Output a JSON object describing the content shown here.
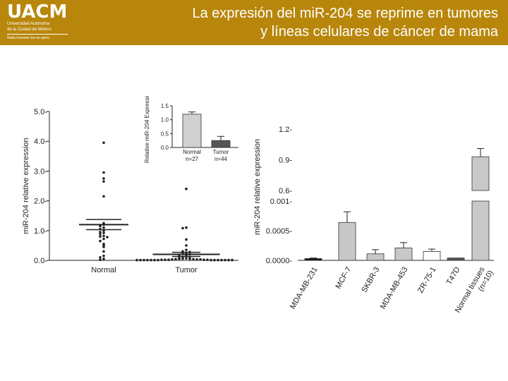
{
  "header": {
    "logo": {
      "name": "UACM",
      "sub1": "Universidad Autónoma",
      "sub2": "de la Ciudad de México",
      "motto": "Nada humano me es ajeno"
    },
    "title_line1": "La expresión del miR-204 se reprime en tumores",
    "title_line2": "y líneas celulares de cáncer de mama",
    "color": "#b8860b"
  },
  "chart_data": [
    {
      "type": "scatter",
      "ylabel": "miR-204 relative expression",
      "ylim": [
        0,
        5
      ],
      "yticks": [
        "0.0",
        "1.0",
        "2.0",
        "3.0",
        "4.0",
        "5.0"
      ],
      "categories": [
        "Normal",
        "Tumor"
      ],
      "series": [
        {
          "values": [
            3.95,
            2.95,
            2.75,
            2.65,
            2.15,
            1.25,
            1.2,
            1.15,
            1.1,
            1.05,
            1.0,
            0.95,
            0.92,
            0.88,
            0.82,
            0.8,
            0.78,
            0.72,
            0.65,
            0.55,
            0.5,
            0.45,
            0.3,
            0.15,
            0.1,
            0.05,
            0.02
          ],
          "mean": 1.2,
          "sem": 0.17
        },
        {
          "values": [
            2.4,
            1.1,
            1.08,
            0.7,
            0.5,
            0.35,
            0.3,
            0.28,
            0.25,
            0.22,
            0.2,
            0.18,
            0.15,
            0.12,
            0.1,
            0.08,
            0.07,
            0.06,
            0.05,
            0.05,
            0.04,
            0.04,
            0.03,
            0.03,
            0.03,
            0.02,
            0.02,
            0.02,
            0.02,
            0.02,
            0.01,
            0.01,
            0.01,
            0.01,
            0.01,
            0.01,
            0.01,
            0.01,
            0.01,
            0.01,
            0.01,
            0.01,
            0.01,
            0.01
          ],
          "mean": 0.2,
          "sem": 0.07
        }
      ]
    },
    {
      "type": "bar",
      "ylabel": "Relative miR-204 Expression",
      "ylim": [
        0,
        1.5
      ],
      "yticks": [
        "0.0",
        "0.5",
        "1.0",
        "1.5"
      ],
      "categories": [
        "Normal n=27",
        "Tumor n=44"
      ],
      "cat_line1": [
        "Normal",
        "Tumor"
      ],
      "cat_line2": [
        "n=27",
        "n=44"
      ],
      "values": [
        1.2,
        0.25
      ],
      "errors": [
        0.08,
        0.15
      ],
      "colors": [
        "#d0d0d0",
        "#555555"
      ]
    },
    {
      "type": "bar",
      "ylabel": "miR-204 relative expression",
      "y_axis_break": true,
      "lower_ticks": [
        "0.0000",
        "0.0005",
        "0.001"
      ],
      "upper_ticks": [
        "0.6",
        "0.9",
        "1.2"
      ],
      "lower_range": [
        0,
        0.001
      ],
      "upper_range": [
        0.6,
        1.2
      ],
      "categories": [
        "MDA-MB-231",
        "MCF-7",
        "SKBR-3",
        "MDA-MB-453",
        "ZR-75-1",
        "T47D",
        "Normal tissues (n=10)"
      ],
      "cat_line1": [
        "MDA-MB-231",
        "MCF-7",
        "SKBR-3",
        "MDA-MB-453",
        "ZR-75-1",
        "T47D",
        "Normal tissues"
      ],
      "cat_line2": [
        "",
        "",
        "",
        "",
        "",
        "",
        "(n=10)"
      ],
      "values": [
        3e-05,
        0.00064,
        0.00011,
        0.00021,
        0.00015,
        4e-05,
        0.93
      ],
      "errors": [
        1e-05,
        0.00018,
        7e-05,
        9e-05,
        4e-05,
        0.0,
        0.08
      ],
      "colors": [
        "#111111",
        "#c8c8c8",
        "#c8c8c8",
        "#c8c8c8",
        "#ffffff",
        "#555555",
        "#c8c8c8"
      ]
    }
  ]
}
